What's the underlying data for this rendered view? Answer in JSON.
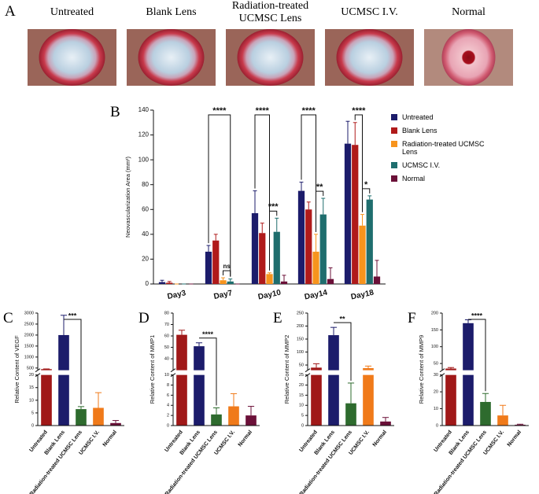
{
  "panel_a": {
    "label": "A",
    "photos": [
      {
        "label": "Untreated"
      },
      {
        "label": "Blank Lens"
      },
      {
        "label": "Radiation-treated UCMSC Lens"
      },
      {
        "label": "UCMSC I.V."
      },
      {
        "label": "Normal"
      }
    ]
  },
  "chart_data": [
    {
      "type": "bar",
      "label": "B",
      "ylabel": "Neovascularization Area (mm²)",
      "categories": [
        "Day3",
        "Day7",
        "Day10",
        "Day14",
        "Day18"
      ],
      "ylim": [
        0,
        140
      ],
      "yticks": [
        0,
        20,
        40,
        60,
        80,
        100,
        120,
        140
      ],
      "series": [
        {
          "name": "Untreated",
          "color": "#1c1c6b",
          "values": [
            1.5,
            26,
            57,
            75,
            113
          ],
          "errors": [
            1.5,
            5,
            18,
            7,
            18
          ]
        },
        {
          "name": "Blank Lens",
          "color": "#b01a1a",
          "values": [
            1,
            35,
            41,
            60,
            112
          ],
          "errors": [
            1,
            5,
            8,
            6,
            18
          ]
        },
        {
          "name": "Radiation-treated UCMSC Lens",
          "color": "#f7941d",
          "values": [
            0,
            3,
            8,
            26,
            47
          ],
          "errors": [
            0,
            2,
            1,
            14,
            9
          ]
        },
        {
          "name": "UCMSC I.V.",
          "color": "#1f6e6e",
          "values": [
            0,
            2,
            42,
            56,
            68
          ],
          "errors": [
            0,
            2,
            11,
            13,
            3
          ]
        },
        {
          "name": "Normal",
          "color": "#6b1038",
          "values": [
            0,
            0,
            2,
            4,
            6
          ],
          "errors": [
            0,
            0,
            5,
            9,
            13
          ]
        }
      ],
      "annotations": [
        {
          "text": "****",
          "category": 1,
          "from": 0,
          "to": 3
        },
        {
          "text": "ns",
          "category": 1,
          "from": 2,
          "to": 3
        },
        {
          "text": "****",
          "category": 2,
          "from": 0,
          "to": 2
        },
        {
          "text": "***",
          "category": 2,
          "from": 2,
          "to": 3
        },
        {
          "text": "****",
          "category": 3,
          "from": 0,
          "to": 2
        },
        {
          "text": "**",
          "category": 3,
          "from": 2,
          "to": 3
        },
        {
          "text": "****",
          "category": 4,
          "from": 1,
          "to": 2
        },
        {
          "text": "*",
          "category": 4,
          "from": 2,
          "to": 3
        }
      ]
    },
    {
      "type": "broken_bar",
      "label": "C",
      "ylabel": "Relative Content of VEGF",
      "categories": [
        "Untreated",
        "Blank Lens",
        "Radiation-treated UCMSC Lens",
        "UCMSC I.V.",
        "Normal"
      ],
      "colors": [
        "#a01818",
        "#1c1c6b",
        "#2e6b2e",
        "#f07a1a",
        "#6b1038"
      ],
      "values": [
        450,
        2000,
        6.5,
        7,
        1
      ],
      "errors": [
        10,
        900,
        1,
        6,
        1
      ],
      "segments": [
        {
          "ylim": [
            0,
            20
          ],
          "yticks": [
            0,
            5,
            10,
            15,
            20
          ]
        },
        {
          "ylim": [
            400,
            3000
          ],
          "yticks": [
            500,
            1000,
            1500,
            2000,
            2500,
            3000
          ]
        }
      ],
      "annotations": [
        {
          "text": "***",
          "from": 1,
          "to": 2
        }
      ]
    },
    {
      "type": "broken_bar",
      "label": "D",
      "ylabel": "Relative Content of MMP1",
      "categories": [
        "Untreated",
        "Blank Lens",
        "Radiation-treated UCMSC Lens",
        "UCMSC I.V.",
        "Normal"
      ],
      "colors": [
        "#a01818",
        "#1c1c6b",
        "#2e6b2e",
        "#f07a1a",
        "#6b1038"
      ],
      "values": [
        61,
        51,
        2.2,
        3.8,
        2
      ],
      "errors": [
        4,
        3,
        1.3,
        2.5,
        1.8
      ],
      "segments": [
        {
          "ylim": [
            0,
            10
          ],
          "yticks": [
            0,
            2,
            4,
            6,
            8,
            10
          ]
        },
        {
          "ylim": [
            30,
            80
          ],
          "yticks": [
            40,
            50,
            60,
            70,
            80
          ]
        }
      ],
      "annotations": [
        {
          "text": "****",
          "from": 1,
          "to": 2
        }
      ]
    },
    {
      "type": "broken_bar",
      "label": "E",
      "ylabel": "Relative Content of MMP2",
      "categories": [
        "Untreated",
        "Blank Lens",
        "Radiation-treated UCMSC Lens",
        "UCMSC I.V.",
        "Normal"
      ],
      "colors": [
        "#a01818",
        "#1c1c6b",
        "#2e6b2e",
        "#f07a1a",
        "#6b1038"
      ],
      "values": [
        40,
        165,
        11,
        38,
        2
      ],
      "errors": [
        15,
        30,
        10,
        8,
        2
      ],
      "segments": [
        {
          "ylim": [
            0,
            25
          ],
          "yticks": [
            0,
            5,
            10,
            15,
            20,
            25
          ]
        },
        {
          "ylim": [
            30,
            250
          ],
          "yticks": [
            50,
            100,
            150,
            200,
            250
          ]
        }
      ],
      "annotations": [
        {
          "text": "**",
          "from": 1,
          "to": 2
        }
      ]
    },
    {
      "type": "broken_bar",
      "label": "F",
      "ylabel": "Relative Content of MMP9",
      "categories": [
        "Untreated",
        "Blank Lens",
        "Radiation-treated UCMSC Lens",
        "UCMSC I.V.",
        "Normal"
      ],
      "colors": [
        "#a01818",
        "#1c1c6b",
        "#2e6b2e",
        "#f07a1a",
        "#6b1038"
      ],
      "values": [
        35,
        170,
        14,
        6,
        0.5
      ],
      "errors": [
        3,
        10,
        5,
        6,
        0.3
      ],
      "segments": [
        {
          "ylim": [
            0,
            30
          ],
          "yticks": [
            0,
            10,
            20,
            30
          ]
        },
        {
          "ylim": [
            30,
            200
          ],
          "yticks": [
            50,
            100,
            150,
            200
          ]
        }
      ],
      "annotations": [
        {
          "text": "****",
          "from": 1,
          "to": 2
        }
      ]
    }
  ]
}
